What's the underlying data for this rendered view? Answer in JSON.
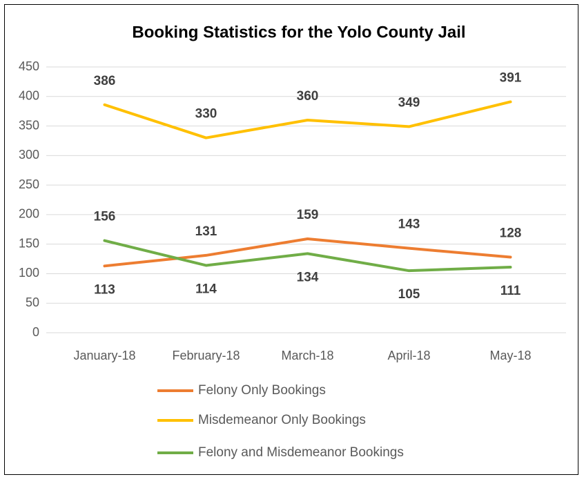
{
  "chart_data": {
    "type": "line",
    "title": "Booking Statistics for the Yolo County Jail",
    "categories": [
      "January-18",
      "February-18",
      "March-18",
      "April-18",
      "May-18"
    ],
    "series": [
      {
        "name": "Felony Only Bookings",
        "color": "#ed7d31",
        "values": [
          113,
          131,
          159,
          143,
          128
        ]
      },
      {
        "name": "Misdemeanor Only Bookings",
        "color": "#ffc000",
        "values": [
          386,
          330,
          360,
          349,
          391
        ]
      },
      {
        "name": "Felony and Misdemeanor Bookings",
        "color": "#70ad47",
        "values": [
          156,
          114,
          134,
          105,
          111
        ]
      }
    ],
    "ylim": [
      0,
      450
    ],
    "yticks": [
      0,
      50,
      100,
      150,
      200,
      250,
      300,
      350,
      400,
      450
    ],
    "grid": true,
    "legend": "bottom"
  }
}
